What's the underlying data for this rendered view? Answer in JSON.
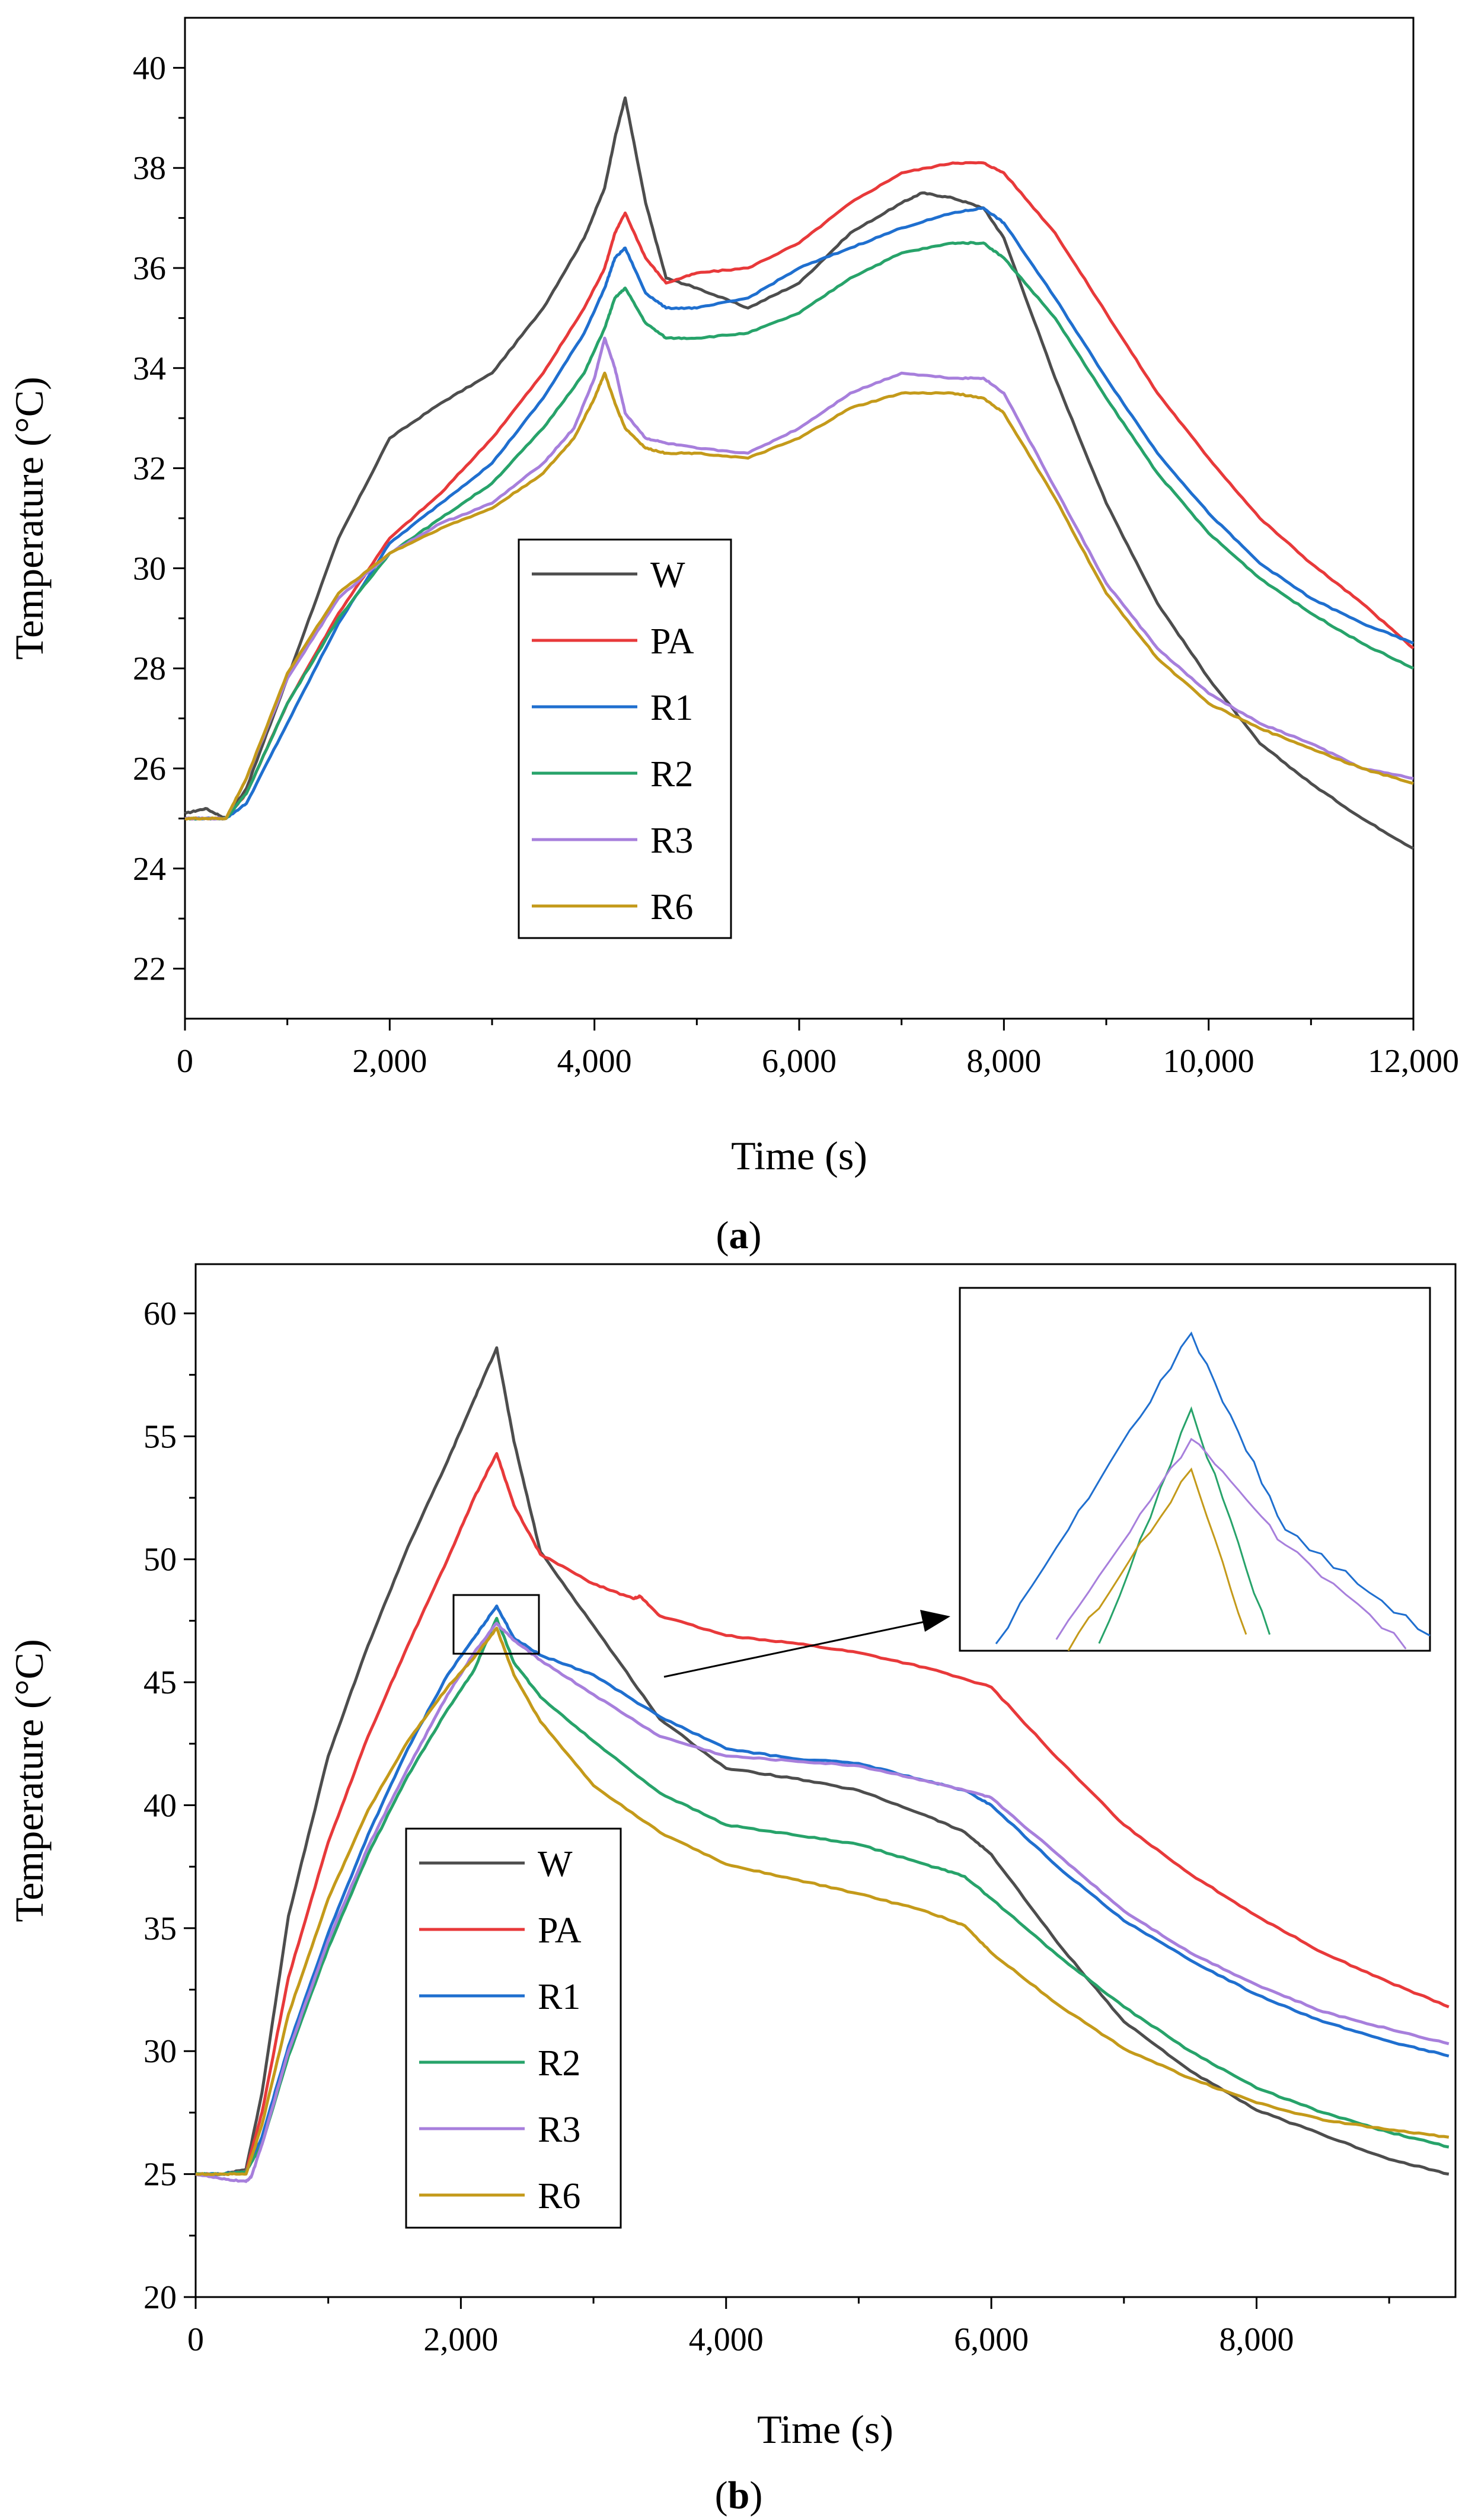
{
  "chart_data": [
    {
      "type": "line",
      "panel_label": "a",
      "xlabel": "Time (s)",
      "ylabel": "Temperature (°C)",
      "xlim": [
        0,
        12000
      ],
      "ylim": [
        21,
        41
      ],
      "x_ticks": [
        0,
        2000,
        4000,
        6000,
        8000,
        10000,
        12000
      ],
      "x_tick_labels": [
        "0",
        "2,000",
        "4,000",
        "6,000",
        "8,000",
        "10,000",
        "12,000"
      ],
      "y_ticks": [
        22,
        24,
        26,
        28,
        30,
        32,
        34,
        36,
        38,
        40
      ],
      "y_tick_labels": [
        "22",
        "24",
        "26",
        "28",
        "30",
        "32",
        "34",
        "36",
        "38",
        "40"
      ],
      "legend_position": "center-left",
      "series": [
        {
          "name": "W",
          "color": "#4d4d4d",
          "x": [
            0,
            200,
            400,
            600,
            1000,
            1500,
            2000,
            2500,
            3000,
            3500,
            3900,
            4100,
            4200,
            4300,
            4500,
            4700,
            5000,
            5500,
            6000,
            6500,
            7000,
            7200,
            7500,
            7800,
            8000,
            8500,
            9000,
            9500,
            10000,
            10500,
            11000,
            11500,
            12000
          ],
          "y": [
            25.1,
            25.2,
            25.0,
            25.6,
            27.8,
            30.6,
            32.6,
            33.3,
            33.9,
            35.2,
            36.6,
            37.6,
            38.6,
            39.4,
            37.3,
            35.8,
            35.6,
            35.2,
            35.7,
            36.7,
            37.3,
            37.5,
            37.4,
            37.2,
            36.6,
            33.8,
            31.3,
            29.3,
            27.8,
            26.5,
            25.7,
            25.0,
            24.4
          ]
        },
        {
          "name": "PA",
          "color": "#e8393a",
          "x": [
            0,
            200,
            400,
            600,
            1000,
            1500,
            2000,
            2500,
            3000,
            3500,
            3900,
            4100,
            4200,
            4300,
            4500,
            4700,
            5000,
            5500,
            6000,
            6500,
            7000,
            7500,
            7800,
            8000,
            8500,
            9000,
            9500,
            10000,
            10500,
            11000,
            11500,
            12000
          ],
          "y": [
            25.0,
            25.0,
            25.0,
            25.5,
            27.3,
            29.1,
            30.6,
            31.5,
            32.6,
            33.9,
            35.2,
            36.0,
            36.7,
            37.1,
            36.2,
            35.7,
            35.9,
            36.0,
            36.5,
            37.3,
            37.9,
            38.1,
            38.1,
            37.9,
            36.7,
            35.1,
            33.5,
            32.2,
            31.0,
            30.1,
            29.3,
            28.4
          ]
        },
        {
          "name": "R1",
          "color": "#1f6fcf",
          "x": [
            0,
            200,
            400,
            600,
            1000,
            1500,
            2000,
            2500,
            3000,
            3500,
            3900,
            4100,
            4200,
            4300,
            4500,
            4700,
            5000,
            5500,
            6000,
            6500,
            7000,
            7500,
            7800,
            8000,
            8500,
            9000,
            9500,
            10000,
            10500,
            11000,
            11500,
            12000
          ],
          "y": [
            25.0,
            25.0,
            25.0,
            25.3,
            26.9,
            28.9,
            30.5,
            31.3,
            32.1,
            33.4,
            34.7,
            35.6,
            36.2,
            36.4,
            35.5,
            35.2,
            35.2,
            35.4,
            36.0,
            36.4,
            36.8,
            37.1,
            37.2,
            36.9,
            35.4,
            33.8,
            32.3,
            31.1,
            30.1,
            29.4,
            28.9,
            28.5
          ]
        },
        {
          "name": "R2",
          "color": "#27a36a",
          "x": [
            0,
            200,
            400,
            600,
            1000,
            1500,
            2000,
            2500,
            3000,
            3500,
            3900,
            4100,
            4200,
            4300,
            4500,
            4700,
            5000,
            5500,
            6000,
            6500,
            7000,
            7500,
            7800,
            8000,
            8500,
            9000,
            9500,
            10000,
            10500,
            11000,
            11500,
            12000
          ],
          "y": [
            25.0,
            25.0,
            25.0,
            25.5,
            27.3,
            29.0,
            30.3,
            31.0,
            31.7,
            32.8,
            33.9,
            34.8,
            35.4,
            35.6,
            34.9,
            34.6,
            34.6,
            34.7,
            35.1,
            35.8,
            36.3,
            36.5,
            36.5,
            36.2,
            35.0,
            33.4,
            31.9,
            30.7,
            29.8,
            29.1,
            28.5,
            28.0
          ]
        },
        {
          "name": "R3",
          "color": "#a77fdc",
          "x": [
            0,
            200,
            400,
            600,
            1000,
            1500,
            2000,
            2500,
            3000,
            3500,
            3800,
            4000,
            4100,
            4200,
            4300,
            4500,
            4700,
            5000,
            5500,
            6000,
            6500,
            7000,
            7500,
            7800,
            8000,
            8500,
            9000,
            9500,
            10000,
            10500,
            11000,
            11500,
            12000
          ],
          "y": [
            25.0,
            25.0,
            25.0,
            25.8,
            27.8,
            29.4,
            30.3,
            30.9,
            31.3,
            32.1,
            32.8,
            33.8,
            34.6,
            34.0,
            33.1,
            32.6,
            32.5,
            32.4,
            32.3,
            32.8,
            33.5,
            33.9,
            33.8,
            33.8,
            33.5,
            31.6,
            29.7,
            28.4,
            27.5,
            26.9,
            26.5,
            26.0,
            25.8
          ]
        },
        {
          "name": "R6",
          "color": "#c49a1a",
          "x": [
            0,
            200,
            400,
            600,
            1000,
            1500,
            2000,
            2500,
            3000,
            3500,
            3800,
            4000,
            4100,
            4200,
            4300,
            4500,
            4700,
            5000,
            5500,
            6000,
            6500,
            7000,
            7500,
            7800,
            8000,
            8500,
            9000,
            9500,
            10000,
            10500,
            11000,
            11500,
            12000
          ],
          "y": [
            25.0,
            25.0,
            25.0,
            25.8,
            27.9,
            29.5,
            30.3,
            30.8,
            31.2,
            31.9,
            32.6,
            33.4,
            33.9,
            33.3,
            32.8,
            32.4,
            32.3,
            32.3,
            32.2,
            32.6,
            33.2,
            33.5,
            33.5,
            33.4,
            33.1,
            31.4,
            29.5,
            28.2,
            27.3,
            26.8,
            26.4,
            26.0,
            25.7
          ]
        }
      ]
    },
    {
      "type": "line",
      "panel_label": "b",
      "xlabel": "Time (s)",
      "ylabel": "Temperature (°C)",
      "xlim": [
        0,
        9500
      ],
      "ylim": [
        20,
        62
      ],
      "x_ticks": [
        0,
        2000,
        4000,
        6000,
        8000
      ],
      "x_tick_labels": [
        "0",
        "2,000",
        "4,000",
        "6,000",
        "8,000"
      ],
      "y_ticks": [
        20,
        25,
        30,
        35,
        40,
        45,
        50,
        55,
        60
      ],
      "y_tick_labels": [
        "20",
        "25",
        "30",
        "35",
        "40",
        "45",
        "50",
        "55",
        "60"
      ],
      "legend_position": "bottom-left",
      "inset": {
        "zoom_xlim": [
          1950,
          2600
        ],
        "zoom_ylim": [
          46.0,
          48.4
        ],
        "series_shown": [
          "R1",
          "R2",
          "R3",
          "R6"
        ]
      },
      "series": [
        {
          "name": "W",
          "color": "#4d4d4d",
          "x": [
            0,
            200,
            380,
            500,
            700,
            1000,
            1300,
            1600,
            1900,
            2100,
            2270,
            2400,
            2600,
            3000,
            3500,
            4000,
            4500,
            5000,
            5500,
            5800,
            6000,
            6500,
            7000,
            7500,
            8000,
            8500,
            9000,
            9450
          ],
          "y": [
            25.0,
            25.0,
            25.2,
            28.3,
            35.5,
            42.0,
            46.5,
            50.5,
            54.0,
            56.5,
            58.6,
            54.8,
            50.3,
            47.3,
            43.5,
            41.5,
            41.1,
            40.6,
            39.6,
            38.9,
            38.0,
            34.4,
            31.2,
            29.2,
            27.6,
            26.6,
            25.6,
            25.0
          ]
        },
        {
          "name": "PA",
          "color": "#e8393a",
          "x": [
            0,
            200,
            380,
            500,
            700,
            1000,
            1300,
            1600,
            1900,
            2100,
            2270,
            2400,
            2600,
            3000,
            3300,
            3350,
            3500,
            4000,
            4500,
            5000,
            5500,
            6000,
            6500,
            7000,
            7500,
            8000,
            8500,
            9000,
            9450
          ],
          "y": [
            25.0,
            25.0,
            25.1,
            27.5,
            33.0,
            38.5,
            42.8,
            46.5,
            50.0,
            52.5,
            54.3,
            52.2,
            50.2,
            49.0,
            48.4,
            48.5,
            47.7,
            46.9,
            46.6,
            46.2,
            45.6,
            44.8,
            41.9,
            39.2,
            37.2,
            35.5,
            34.0,
            32.8,
            31.8
          ]
        },
        {
          "name": "R1",
          "color": "#1f6fcf",
          "x": [
            0,
            200,
            380,
            500,
            700,
            1000,
            1300,
            1600,
            1900,
            2100,
            2270,
            2400,
            2600,
            3000,
            3500,
            4000,
            4500,
            5000,
            5500,
            5800,
            6000,
            6500,
            7000,
            7500,
            8000,
            8500,
            9000,
            9450
          ],
          "y": [
            25.0,
            25.0,
            25.1,
            26.5,
            30.2,
            34.8,
            38.8,
            42.3,
            45.3,
            46.8,
            48.1,
            46.8,
            46.1,
            45.3,
            43.6,
            42.3,
            41.9,
            41.7,
            41.0,
            40.6,
            40.0,
            37.5,
            35.3,
            33.7,
            32.3,
            31.2,
            30.4,
            29.8
          ]
        },
        {
          "name": "R2",
          "color": "#27a36a",
          "x": [
            0,
            200,
            380,
            500,
            700,
            1000,
            1300,
            1600,
            1900,
            2100,
            2270,
            2400,
            2600,
            3000,
            3500,
            4000,
            4500,
            5000,
            5500,
            5800,
            6000,
            6500,
            7000,
            7500,
            8000,
            8500,
            9000,
            9450
          ],
          "y": [
            25.0,
            25.0,
            25.1,
            26.2,
            29.8,
            34.2,
            38.0,
            41.2,
            43.9,
            45.5,
            47.6,
            45.8,
            44.4,
            42.6,
            40.5,
            39.2,
            38.8,
            38.4,
            37.6,
            37.1,
            36.2,
            33.9,
            31.8,
            30.0,
            28.5,
            27.5,
            26.7,
            26.1
          ]
        },
        {
          "name": "R3",
          "color": "#a77fdc",
          "x": [
            0,
            200,
            380,
            420,
            500,
            700,
            1000,
            1300,
            1600,
            1900,
            2100,
            2270,
            2400,
            2600,
            3000,
            3500,
            4000,
            4500,
            5000,
            5500,
            5800,
            6000,
            6500,
            7000,
            7500,
            8000,
            8500,
            9000,
            9450
          ],
          "y": [
            25.0,
            24.8,
            24.7,
            24.9,
            26.2,
            30.0,
            34.5,
            38.3,
            41.5,
            44.5,
            46.2,
            47.4,
            46.7,
            45.9,
            44.5,
            42.8,
            42.0,
            41.8,
            41.6,
            41.0,
            40.6,
            40.3,
            38.0,
            35.7,
            34.0,
            32.7,
            31.6,
            30.9,
            30.3
          ]
        },
        {
          "name": "R6",
          "color": "#c49a1a",
          "x": [
            0,
            200,
            380,
            500,
            700,
            1000,
            1300,
            1600,
            1900,
            2100,
            2270,
            2400,
            2600,
            3000,
            3500,
            4000,
            4500,
            5000,
            5500,
            5800,
            6000,
            6500,
            7000,
            7500,
            8000,
            8500,
            9000,
            9450
          ],
          "y": [
            25.0,
            25.0,
            25.0,
            27.0,
            31.5,
            36.2,
            39.8,
            42.6,
            44.8,
            46.0,
            47.2,
            45.3,
            43.4,
            40.8,
            38.9,
            37.6,
            37.0,
            36.4,
            35.7,
            35.1,
            34.0,
            31.9,
            30.1,
            28.9,
            27.9,
            27.2,
            26.8,
            26.5
          ]
        }
      ]
    }
  ]
}
